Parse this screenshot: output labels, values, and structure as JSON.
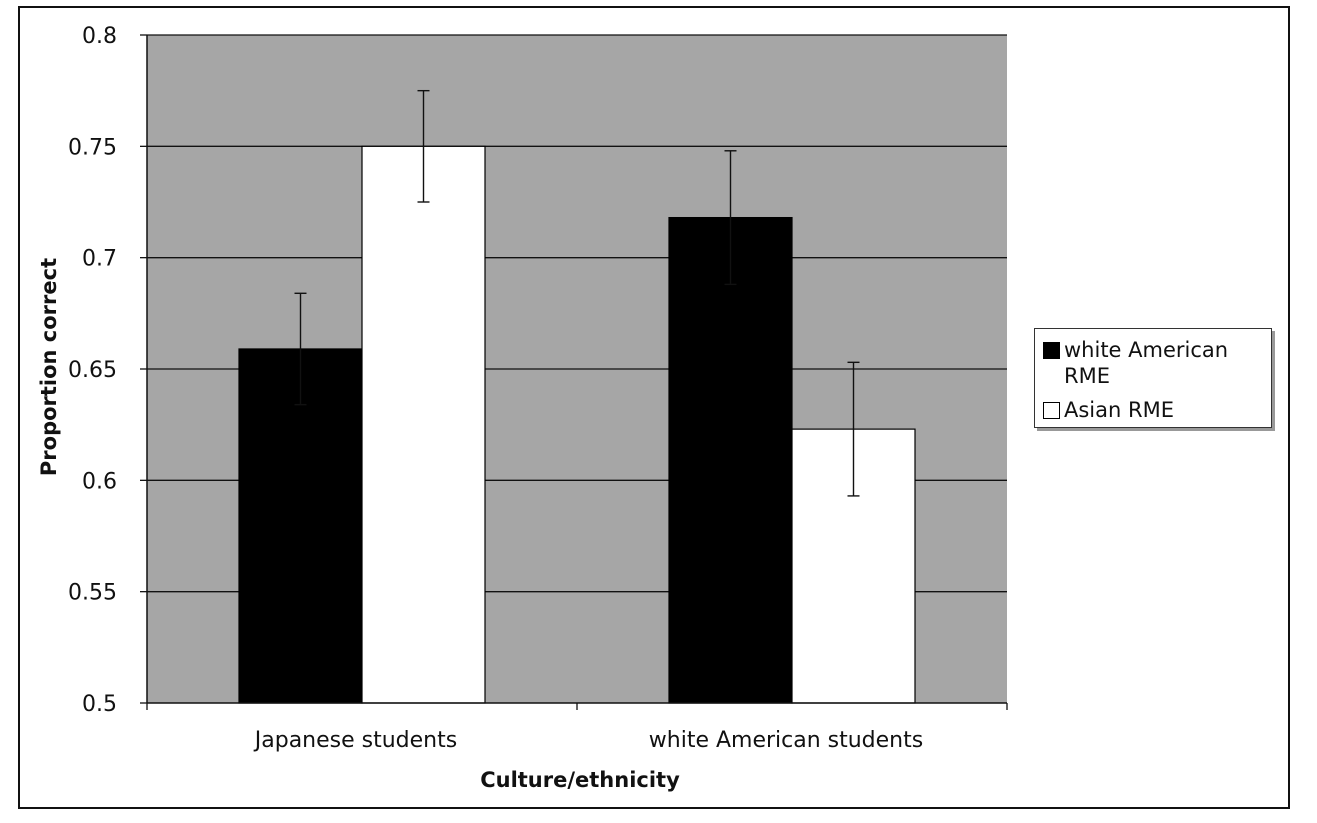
{
  "chart_data": {
    "type": "bar",
    "title": "",
    "xlabel": "Culture/ethnicity",
    "ylabel": "Proportion correct",
    "ylim": [
      0.5,
      0.8
    ],
    "yticks": [
      "0.5",
      "0.55",
      "0.6",
      "0.65",
      "0.7",
      "0.75",
      "0.8"
    ],
    "categories": [
      "Japanese students",
      "white American students"
    ],
    "series": [
      {
        "name": "white American RME",
        "values": [
          0.659,
          0.718
        ],
        "error": [
          0.025,
          0.03
        ],
        "color": "#000000"
      },
      {
        "name": "Asian RME",
        "values": [
          0.75,
          0.623
        ],
        "error": [
          0.025,
          0.03
        ],
        "color": "#ffffff"
      }
    ],
    "plot_background": "#a6a6a6",
    "grid": true,
    "legend_position": "right"
  },
  "legend": {
    "items": [
      {
        "label": "white American\nRME",
        "color": "#000000"
      },
      {
        "label": "Asian RME",
        "color": "#ffffff"
      }
    ]
  }
}
